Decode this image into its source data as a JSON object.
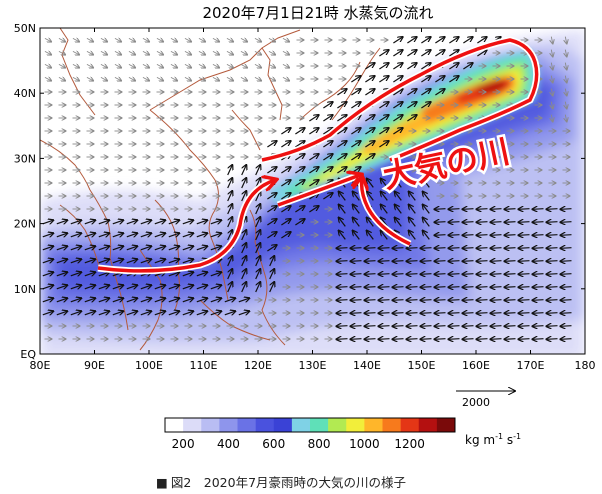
{
  "title": "2020年7月1日21時 水蒸気の流れ",
  "annotation": "大気の川",
  "reference_vector": {
    "label": "2000"
  },
  "axes": {
    "lon_labels": [
      "80E",
      "90E",
      "100E",
      "110E",
      "120E",
      "130E",
      "140E",
      "150E",
      "160E",
      "170E",
      "180"
    ],
    "lat_labels": [
      "EQ",
      "10N",
      "20N",
      "30N",
      "40N",
      "50N"
    ],
    "lon_range": [
      80,
      180
    ],
    "lat_range": [
      0,
      50
    ]
  },
  "colorbar": {
    "tick_labels": [
      "200",
      "400",
      "600",
      "800",
      "1000",
      "1200"
    ],
    "unit_base": "kg m",
    "unit_exp1": "-1",
    "unit_mid": " s",
    "unit_exp2": "-1",
    "colors": [
      "#ffffff",
      "#dcdcf8",
      "#b9bdf3",
      "#8e95ec",
      "#6a72e6",
      "#4a52de",
      "#3a42d6",
      "#7fd2e6",
      "#5fe0b8",
      "#b2ea52",
      "#f2ee3a",
      "#ffb62a",
      "#f77a1c",
      "#e43616",
      "#b41010",
      "#7a0a0a"
    ]
  },
  "caption": {
    "marker": "■",
    "text": "図2　2020年7月豪雨時の大気の川の様子"
  },
  "colors": {
    "river_arrow": "#ee1111",
    "coast": "#b45a3c",
    "vector": "#111111",
    "weak_vector": "#8a8a8a"
  }
}
